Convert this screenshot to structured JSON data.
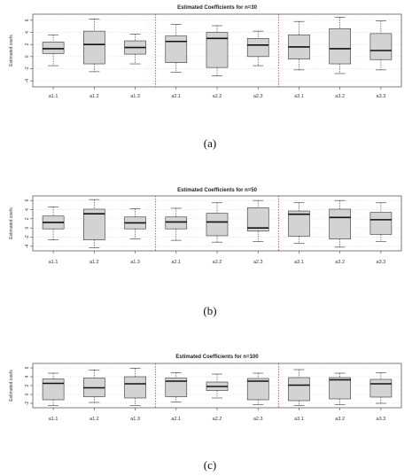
{
  "captions": [
    "(a)",
    "(b)",
    "(c)"
  ],
  "chart_data": [
    {
      "type": "box",
      "title": "Estimated Coefficients for n=30",
      "ylabel": "Estimated coefs",
      "categories": [
        "a1.1",
        "a1.2",
        "a1.3",
        "a2.1",
        "a2.2",
        "a2.3",
        "a3.1",
        "a3.2",
        "a3.3"
      ],
      "ylim": [
        -5,
        7
      ],
      "yticks": [
        -4,
        -2,
        0,
        2,
        4,
        6
      ],
      "grid": true,
      "group_separators_after": [
        3,
        6
      ],
      "boxes": [
        {
          "min": -1.5,
          "q1": 0.5,
          "median": 1.3,
          "q3": 2.4,
          "max": 3.6
        },
        {
          "min": -2.5,
          "q1": -1.2,
          "median": 2.0,
          "q3": 4.2,
          "max": 6.2
        },
        {
          "min": -1.2,
          "q1": 0.4,
          "median": 1.5,
          "q3": 2.6,
          "max": 3.7
        },
        {
          "min": -2.6,
          "q1": -1.0,
          "median": 2.5,
          "q3": 3.4,
          "max": 5.3
        },
        {
          "min": -3.2,
          "q1": -1.8,
          "median": 3.0,
          "q3": 4.0,
          "max": 5.1
        },
        {
          "min": -1.5,
          "q1": 0.0,
          "median": 1.9,
          "q3": 3.0,
          "max": 4.2
        },
        {
          "min": -2.2,
          "q1": -0.4,
          "median": 1.6,
          "q3": 3.6,
          "max": 5.8
        },
        {
          "min": -2.8,
          "q1": -1.2,
          "median": 1.3,
          "q3": 4.6,
          "max": 6.5
        },
        {
          "min": -2.2,
          "q1": -0.5,
          "median": 1.0,
          "q3": 3.8,
          "max": 5.9
        }
      ]
    },
    {
      "type": "box",
      "title": "Estimated Coefficients for n=50",
      "ylabel": "Estimated coefs",
      "categories": [
        "a1.1",
        "a1.2",
        "a1.3",
        "a2.1",
        "a2.2",
        "a2.3",
        "a3.1",
        "a3.2",
        "a3.3"
      ],
      "ylim": [
        -5,
        7
      ],
      "yticks": [
        -4,
        -2,
        0,
        2,
        4,
        6
      ],
      "grid": true,
      "group_separators_after": [
        3,
        6
      ],
      "boxes": [
        {
          "min": -2.6,
          "q1": -0.2,
          "median": 1.2,
          "q3": 2.6,
          "max": 4.6
        },
        {
          "min": -4.3,
          "q1": -2.6,
          "median": 3.1,
          "q3": 4.1,
          "max": 6.2
        },
        {
          "min": -2.4,
          "q1": -0.2,
          "median": 1.1,
          "q3": 2.4,
          "max": 4.2
        },
        {
          "min": -2.7,
          "q1": -0.2,
          "median": 1.3,
          "q3": 2.4,
          "max": 4.3
        },
        {
          "min": -3.1,
          "q1": -1.7,
          "median": 1.3,
          "q3": 3.2,
          "max": 5.5
        },
        {
          "min": -3.0,
          "q1": -0.7,
          "median": 0.0,
          "q3": 4.4,
          "max": 6.0
        },
        {
          "min": -3.4,
          "q1": -1.8,
          "median": 3.0,
          "q3": 3.7,
          "max": 5.5
        },
        {
          "min": -4.2,
          "q1": -2.4,
          "median": 2.3,
          "q3": 4.1,
          "max": 6.0
        },
        {
          "min": -3.0,
          "q1": -1.4,
          "median": 1.8,
          "q3": 3.4,
          "max": 5.5
        }
      ]
    },
    {
      "type": "box",
      "title": "Estimated Coefficients for n=100",
      "ylabel": "Estimated coefs",
      "categories": [
        "a1.1",
        "a1.2",
        "a1.3",
        "a2.1",
        "a2.2",
        "a2.3",
        "a3.1",
        "a3.2",
        "a3.3"
      ],
      "ylim": [
        -3,
        7
      ],
      "yticks": [
        -2,
        0,
        2,
        4,
        6
      ],
      "grid": true,
      "group_separators_after": [
        3,
        6
      ],
      "boxes": [
        {
          "min": -2.5,
          "q1": -1.2,
          "median": 2.5,
          "q3": 3.5,
          "max": 4.8
        },
        {
          "min": -1.8,
          "q1": -0.5,
          "median": 1.5,
          "q3": 3.7,
          "max": 5.5
        },
        {
          "min": -2.5,
          "q1": -0.8,
          "median": 2.4,
          "q3": 4.0,
          "max": 5.9
        },
        {
          "min": -1.7,
          "q1": -0.5,
          "median": 3.0,
          "q3": 3.7,
          "max": 4.9
        },
        {
          "min": -0.8,
          "q1": 0.9,
          "median": 1.8,
          "q3": 2.8,
          "max": 4.6
        },
        {
          "min": -2.3,
          "q1": -1.2,
          "median": 3.0,
          "q3": 3.6,
          "max": 4.8
        },
        {
          "min": -2.5,
          "q1": -1.4,
          "median": 2.1,
          "q3": 3.8,
          "max": 5.6
        },
        {
          "min": -2.3,
          "q1": -1.0,
          "median": 3.3,
          "q3": 3.8,
          "max": 4.8
        },
        {
          "min": -2.0,
          "q1": -0.6,
          "median": 2.4,
          "q3": 3.4,
          "max": 4.9
        }
      ]
    }
  ]
}
